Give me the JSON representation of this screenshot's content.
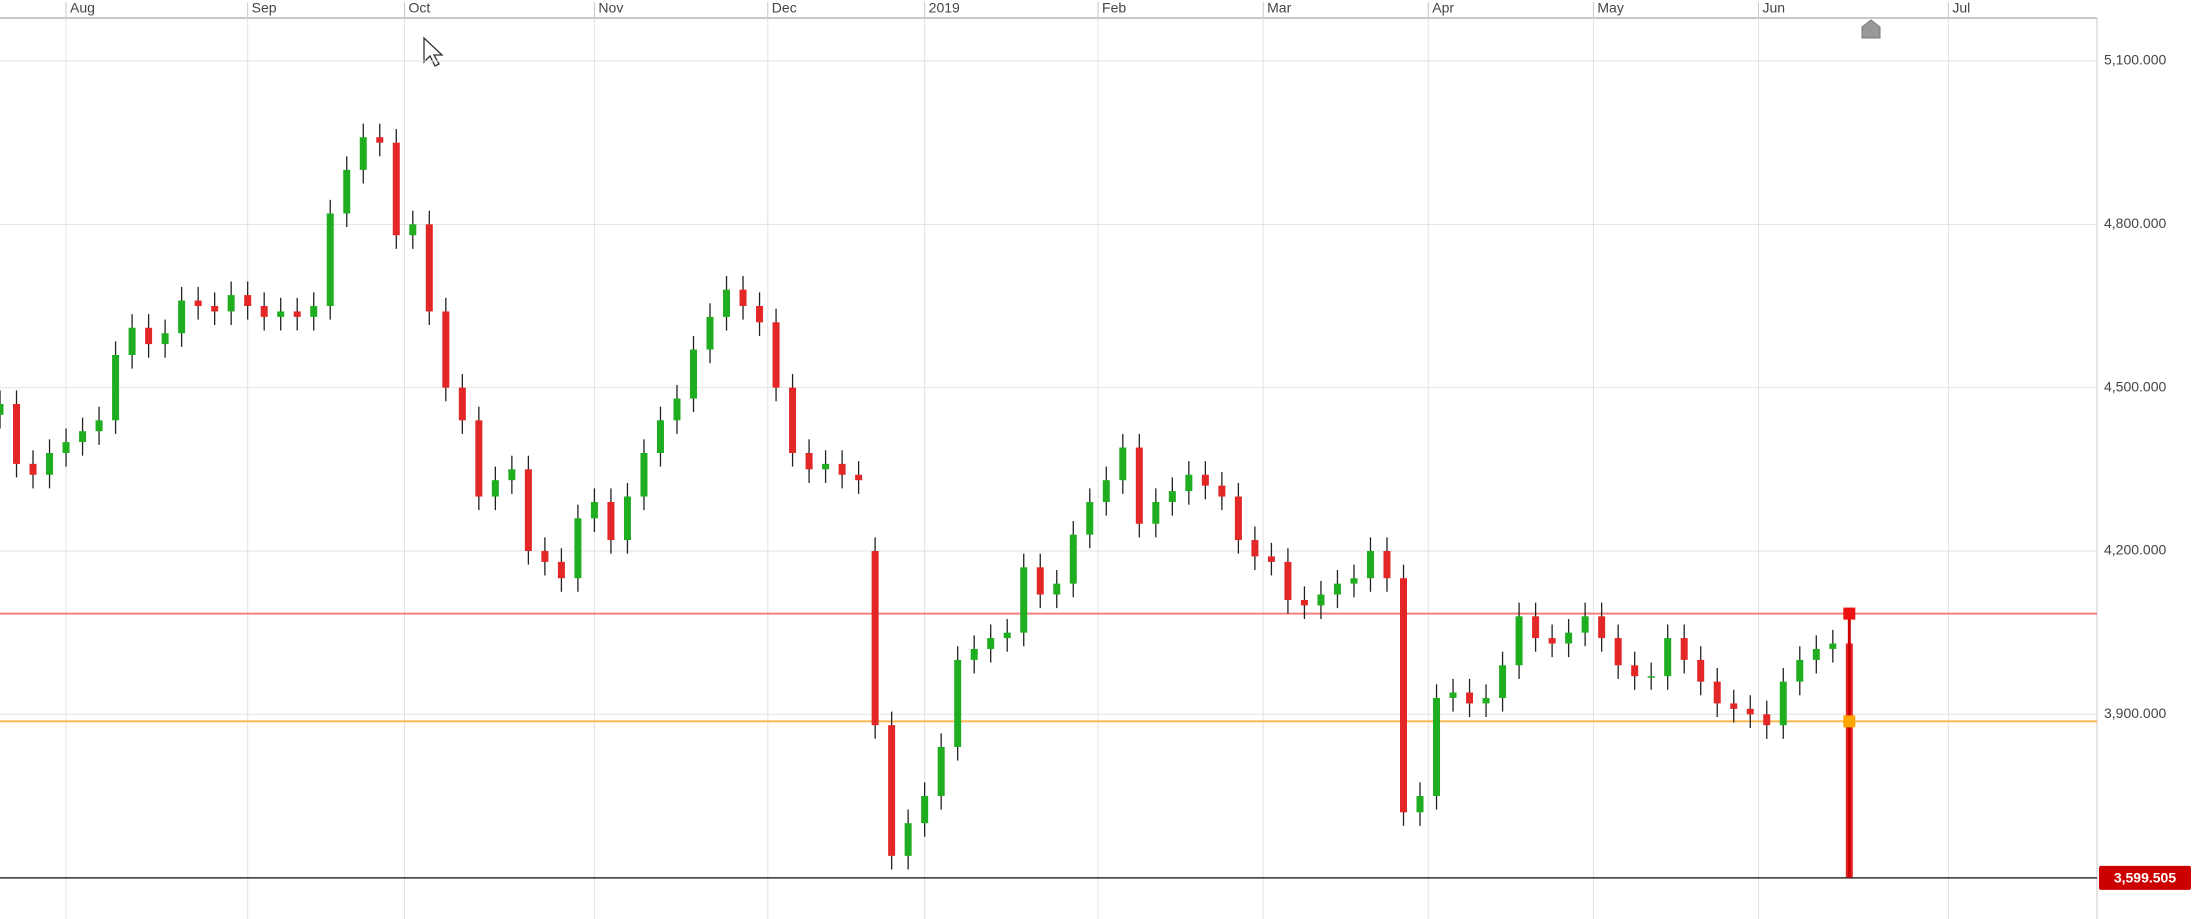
{
  "chart_data": {
    "type": "candlestick",
    "xlim": [
      0,
      254
    ],
    "xticks": [
      {
        "value": 8,
        "label": "Aug"
      },
      {
        "value": 30,
        "label": "Sep"
      },
      {
        "value": 49,
        "label": "Oct"
      },
      {
        "value": 72,
        "label": "Nov"
      },
      {
        "value": 93,
        "label": "Dec"
      },
      {
        "value": 112,
        "label": "2019"
      },
      {
        "value": 133,
        "label": "Feb"
      },
      {
        "value": 153,
        "label": "Mar"
      },
      {
        "value": 173,
        "label": "Apr"
      },
      {
        "value": 193,
        "label": "May"
      },
      {
        "value": 213,
        "label": "Jun"
      },
      {
        "value": 236,
        "label": "Jul"
      }
    ],
    "ylim": [
      3524,
      5179
    ],
    "yticks": [
      {
        "value": 3900,
        "label": "3,900.000"
      },
      {
        "value": 4200,
        "label": "4,200.000"
      },
      {
        "value": 4500,
        "label": "4,500.000"
      },
      {
        "value": 4800,
        "label": "4,800.000"
      },
      {
        "value": 5100,
        "label": "5,100.000"
      }
    ],
    "grid": true,
    "up_color": "#1fae1f",
    "down_color": "#e32626",
    "x": [
      0,
      2,
      4,
      6,
      8,
      10,
      12,
      14,
      16,
      18,
      20,
      22,
      24,
      26,
      28,
      30,
      32,
      34,
      36,
      38,
      40,
      42,
      44,
      46,
      48,
      50,
      52,
      54,
      56,
      58,
      60,
      62,
      64,
      66,
      68,
      70,
      72,
      74,
      76,
      78,
      80,
      82,
      84,
      86,
      88,
      90,
      92,
      94,
      96,
      98,
      100,
      102,
      104,
      106,
      108,
      110,
      112,
      114,
      116,
      118,
      120,
      122,
      124,
      126,
      128,
      130,
      132,
      134,
      136,
      138,
      140,
      142,
      144,
      146,
      148,
      150,
      152,
      154,
      156,
      158,
      160,
      162,
      164,
      166,
      168,
      170,
      172,
      174,
      176,
      178,
      180,
      182,
      184,
      186,
      188,
      190,
      192,
      194,
      196,
      198,
      200,
      202,
      204,
      206,
      208,
      210,
      212,
      214,
      216,
      218,
      220,
      222,
      224
    ],
    "open": [
      4450,
      4470,
      4360,
      4340,
      4380,
      4400,
      4420,
      4440,
      4560,
      4610,
      4580,
      4600,
      4660,
      4650,
      4640,
      4670,
      4650,
      4630,
      4640,
      4630,
      4650,
      4820,
      4900,
      4960,
      4950,
      4780,
      4800,
      4640,
      4500,
      4440,
      4300,
      4330,
      4350,
      4200,
      4180,
      4150,
      4260,
      4290,
      4220,
      4300,
      4380,
      4440,
      4480,
      4570,
      4630,
      4680,
      4650,
      4620,
      4500,
      4380,
      4350,
      4360,
      4340,
      4200,
      3880,
      3640,
      3700,
      3750,
      3840,
      4000,
      4020,
      4040,
      4050,
      4170,
      4120,
      4140,
      4230,
      4290,
      4330,
      4390,
      4250,
      4290,
      4310,
      4340,
      4320,
      4300,
      4220,
      4190,
      4180,
      4110,
      4100,
      4120,
      4140,
      4150,
      4200,
      4150,
      3720,
      3750,
      3930,
      3940,
      3920,
      3930,
      3990,
      4080,
      4040,
      4030,
      4050,
      4080,
      4040,
      3990,
      3970,
      3970,
      4040,
      4000,
      3960,
      3920,
      3910,
      3900,
      3880,
      3960,
      4000,
      4020,
      4030
    ],
    "high": [
      4495,
      4495,
      4385,
      4405,
      4425,
      4445,
      4465,
      4585,
      4635,
      4635,
      4625,
      4685,
      4685,
      4675,
      4695,
      4695,
      4675,
      4665,
      4665,
      4675,
      4845,
      4925,
      4985,
      4985,
      4975,
      4825,
      4825,
      4665,
      4525,
      4465,
      4355,
      4375,
      4375,
      4225,
      4205,
      4285,
      4315,
      4315,
      4325,
      4405,
      4465,
      4505,
      4595,
      4655,
      4705,
      4705,
      4675,
      4645,
      4525,
      4405,
      4385,
      4385,
      4365,
      4225,
      3905,
      3725,
      3775,
      3865,
      4025,
      4045,
      4065,
      4075,
      4195,
      4195,
      4165,
      4255,
      4315,
      4355,
      4415,
      4415,
      4315,
      4335,
      4365,
      4365,
      4345,
      4325,
      4245,
      4215,
      4205,
      4135,
      4145,
      4165,
      4175,
      4225,
      4225,
      4175,
      3775,
      3955,
      3965,
      3965,
      3955,
      4015,
      4105,
      4105,
      4065,
      4075,
      4105,
      4105,
      4065,
      4015,
      3995,
      4065,
      4065,
      4025,
      3985,
      3945,
      3935,
      3925,
      3985,
      4025,
      4045,
      4055,
      4055
    ],
    "low": [
      4425,
      4335,
      4315,
      4315,
      4355,
      4375,
      4395,
      4415,
      4535,
      4555,
      4555,
      4575,
      4625,
      4615,
      4615,
      4625,
      4605,
      4605,
      4605,
      4605,
      4625,
      4795,
      4875,
      4925,
      4755,
      4755,
      4615,
      4475,
      4415,
      4275,
      4275,
      4305,
      4175,
      4155,
      4125,
      4125,
      4235,
      4195,
      4195,
      4275,
      4355,
      4415,
      4455,
      4545,
      4605,
      4625,
      4595,
      4475,
      4355,
      4325,
      4325,
      4315,
      4305,
      3855,
      3615,
      3615,
      3675,
      3725,
      3815,
      3975,
      3995,
      4015,
      4025,
      4095,
      4095,
      4115,
      4205,
      4265,
      4305,
      4225,
      4225,
      4265,
      4285,
      4295,
      4275,
      4195,
      4165,
      4155,
      4085,
      4075,
      4075,
      4095,
      4115,
      4125,
      4125,
      3695,
      3695,
      3725,
      3905,
      3895,
      3895,
      3905,
      3965,
      4015,
      4005,
      4005,
      4025,
      4015,
      3965,
      3945,
      3945,
      3945,
      3975,
      3935,
      3895,
      3885,
      3875,
      3855,
      3855,
      3935,
      3975,
      3995,
      3599.505
    ],
    "close": [
      4470,
      4360,
      4340,
      4380,
      4400,
      4420,
      4440,
      4560,
      4610,
      4580,
      4600,
      4660,
      4650,
      4640,
      4670,
      4650,
      4630,
      4640,
      4630,
      4650,
      4820,
      4900,
      4960,
      4950,
      4780,
      4800,
      4640,
      4500,
      4440,
      4300,
      4330,
      4350,
      4200,
      4180,
      4150,
      4260,
      4290,
      4220,
      4300,
      4380,
      4440,
      4480,
      4570,
      4630,
      4680,
      4650,
      4620,
      4500,
      4380,
      4350,
      4360,
      4340,
      4330,
      3880,
      3640,
      3700,
      3750,
      3840,
      4000,
      4020,
      4040,
      4050,
      4170,
      4120,
      4140,
      4230,
      4290,
      4330,
      4390,
      4250,
      4290,
      4310,
      4340,
      4320,
      4300,
      4220,
      4190,
      4180,
      4110,
      4100,
      4120,
      4140,
      4150,
      4200,
      4150,
      3720,
      3750,
      3930,
      3940,
      3920,
      3930,
      3990,
      4080,
      4040,
      4030,
      4050,
      4080,
      4040,
      3990,
      3970,
      3970,
      4040,
      4000,
      3960,
      3920,
      3910,
      3900,
      3880,
      3960,
      4000,
      4020,
      4030,
      3599.505
    ],
    "levels": [
      {
        "value": 4085,
        "color": "#f08080",
        "marker_color": "#ee1111"
      },
      {
        "value": 3887,
        "color": "#ffb84d",
        "marker_color": "#ffa500"
      }
    ],
    "last_price": {
      "value": 3599.505,
      "label": "3,599.505",
      "color": "#cc0000"
    }
  }
}
